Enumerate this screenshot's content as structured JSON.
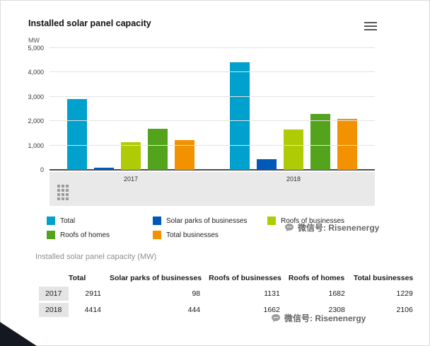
{
  "chart": {
    "title": "Installed solar panel capacity",
    "unit": "MW"
  },
  "chart_data": {
    "type": "bar",
    "title": "Installed solar panel capacity",
    "ylabel": "MW",
    "ylim": [
      0,
      5000
    ],
    "yticks": [
      0,
      1000,
      2000,
      3000,
      4000,
      5000
    ],
    "ytick_labels": [
      "0",
      "1,000",
      "2,000",
      "3,000",
      "4,000",
      "5,000"
    ],
    "categories": [
      "2017",
      "2018"
    ],
    "series": [
      {
        "name": "Total",
        "color": "#00a1cd",
        "values": [
          2911,
          4414
        ]
      },
      {
        "name": "Solar parks of businesses",
        "color": "#0058b8",
        "values": [
          98,
          444
        ]
      },
      {
        "name": "Roofs of businesses",
        "color": "#afcb05",
        "values": [
          1131,
          1662
        ]
      },
      {
        "name": "Roofs of homes",
        "color": "#53a31d",
        "values": [
          1682,
          2308
        ]
      },
      {
        "name": "Total businesses",
        "color": "#f39200",
        "values": [
          1229,
          2106
        ]
      }
    ],
    "grid": true,
    "legend_position": "bottom"
  },
  "table": {
    "title": "Installed solar panel capacity (MW)",
    "columns": [
      "",
      "Total",
      "Solar parks of businesses",
      "Roofs of businesses",
      "Roofs of homes",
      "Total businesses"
    ],
    "rows": [
      {
        "year": "2017",
        "values": [
          "2911",
          "98",
          "1131",
          "1682",
          "1229"
        ]
      },
      {
        "year": "2018",
        "values": [
          "4414",
          "444",
          "1662",
          "2308",
          "2106"
        ]
      }
    ]
  },
  "watermark": {
    "text": "微信号: Risenenergy"
  },
  "icons": {
    "menu": "hamburger-menu-icon",
    "building": "building-pattern-icon",
    "watermark_badge": "chat-bubble-icon"
  }
}
